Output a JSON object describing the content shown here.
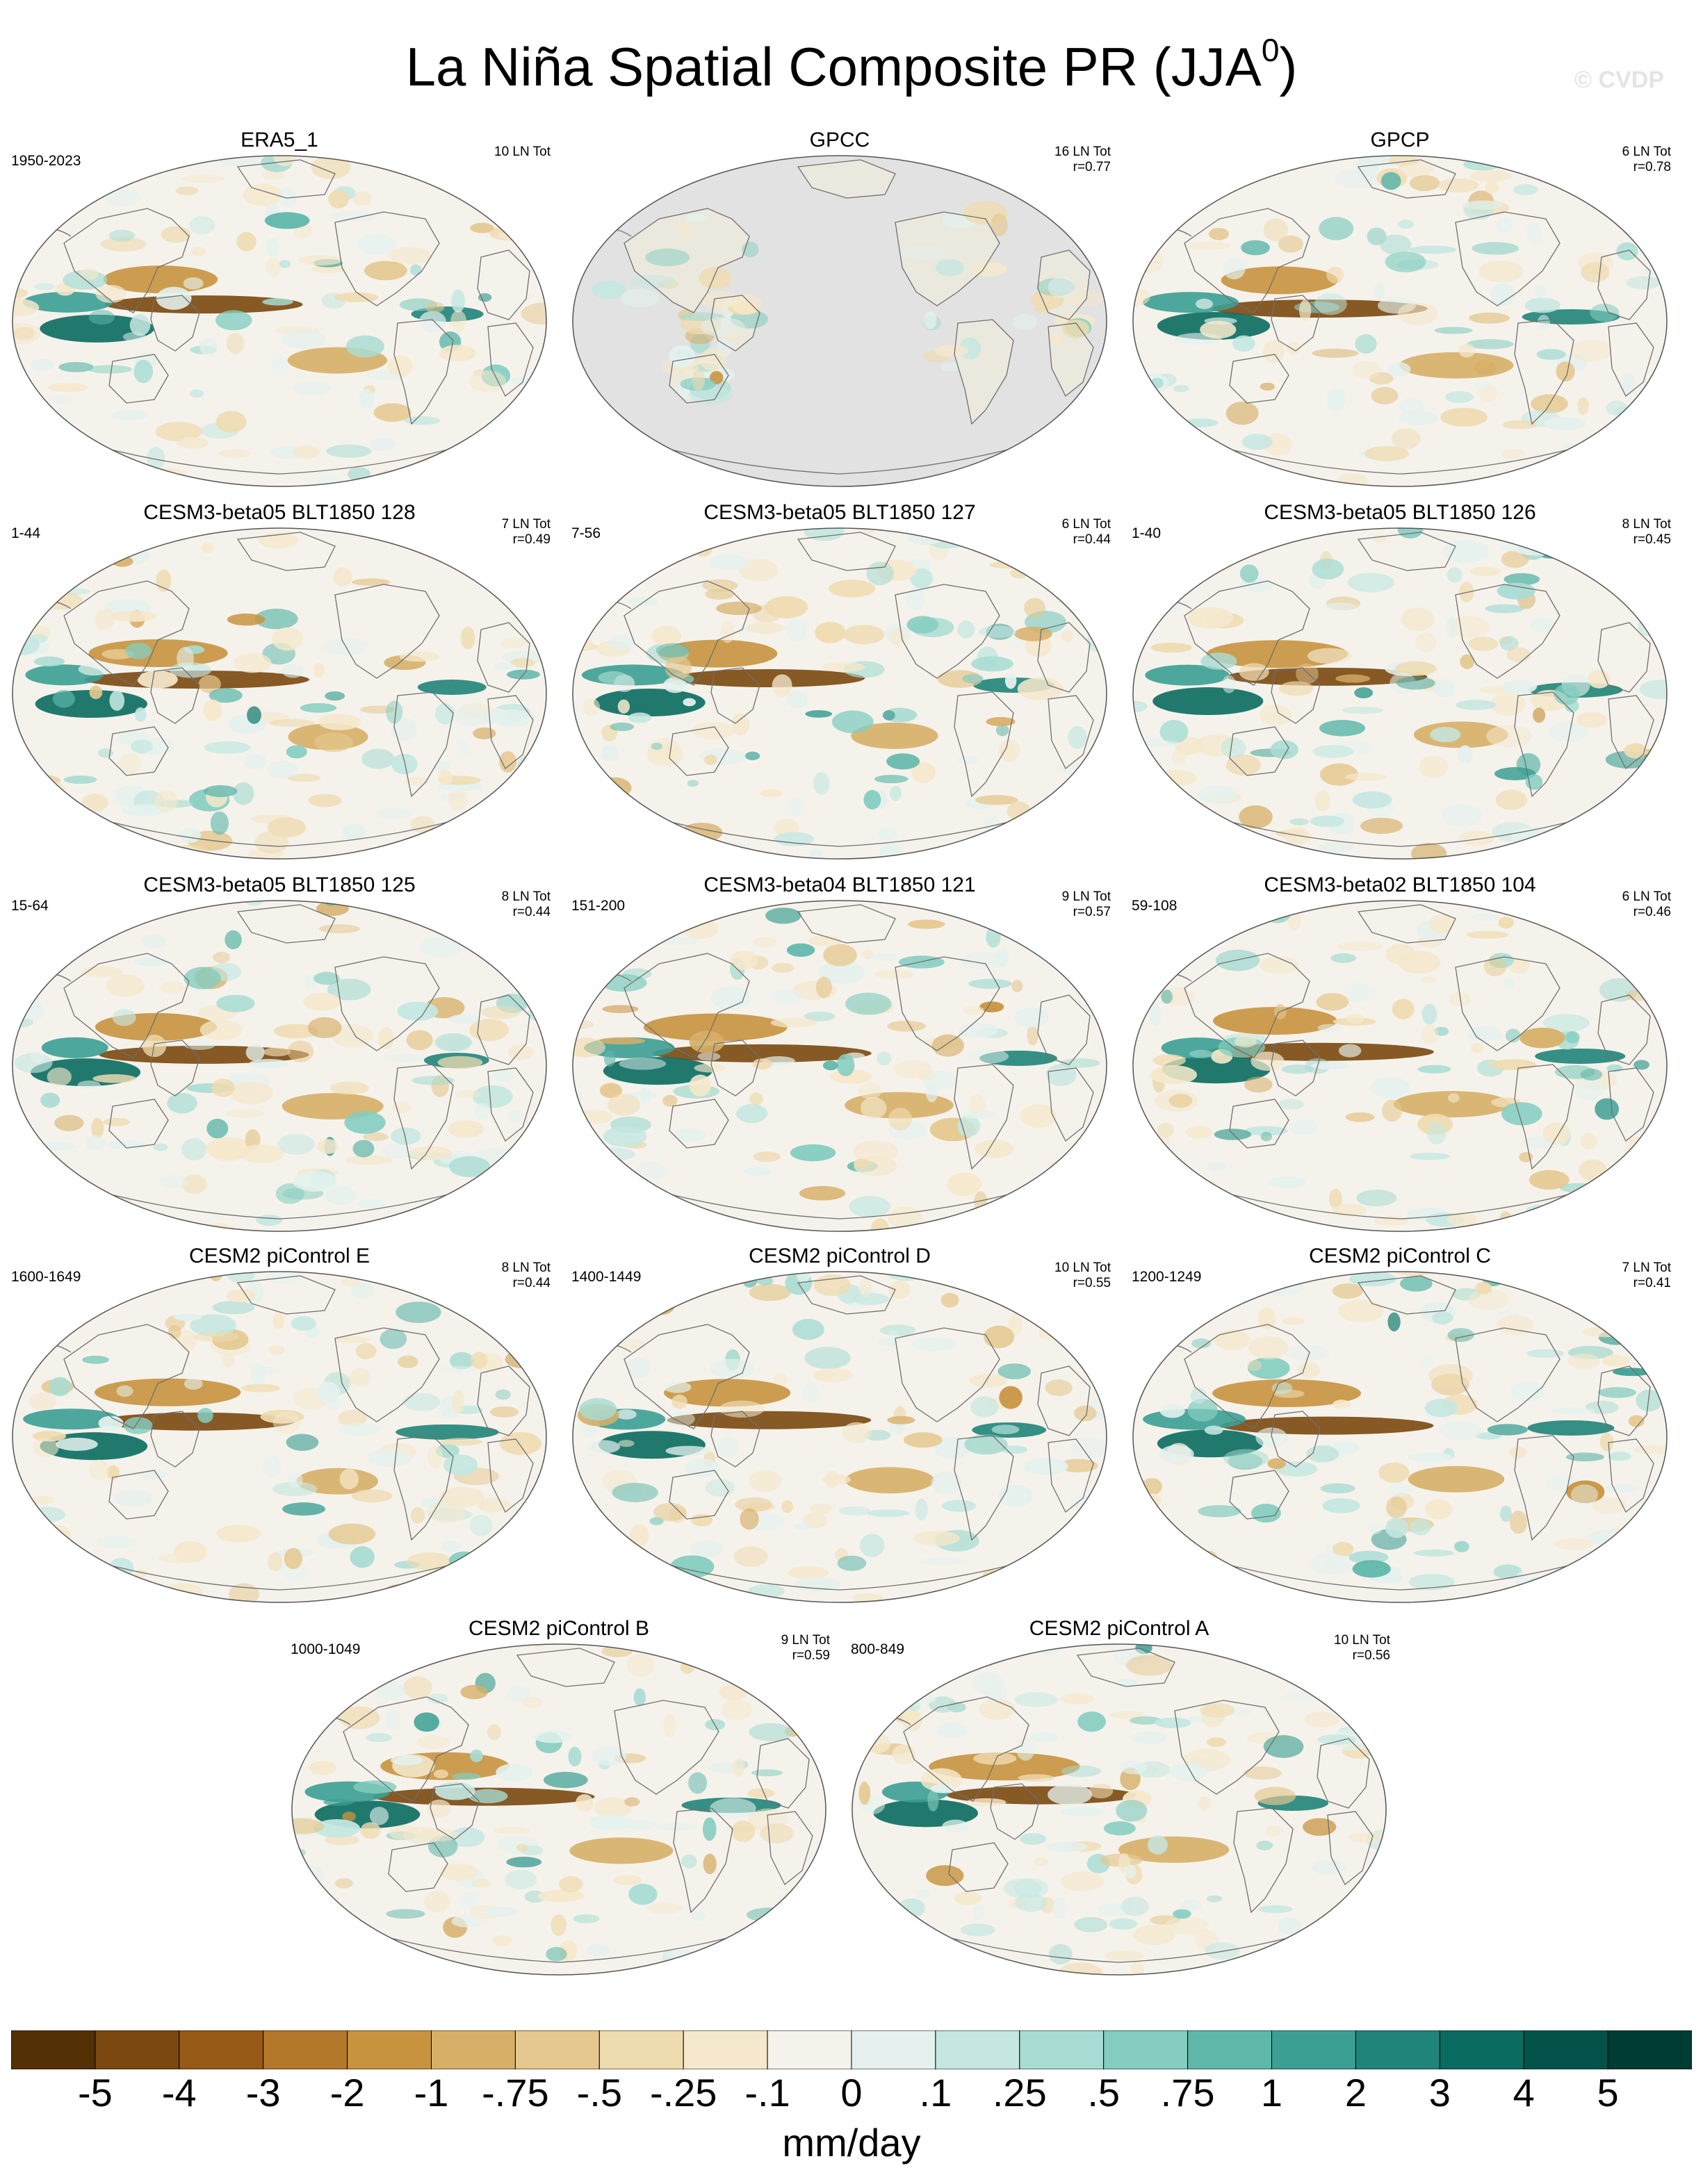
{
  "title": "La Niña Spatial Composite PR (JJA",
  "title_superscript": "0",
  "title_close": ")",
  "watermark": "© CVDP",
  "panels": [
    {
      "title": "ERA5_1",
      "years": "1950-2023",
      "stats": "10 LN Tot",
      "land_masked": false
    },
    {
      "title": "GPCC",
      "years": "",
      "stats": "16 LN Tot\nr=0.77",
      "land_masked": true
    },
    {
      "title": "GPCP",
      "years": "",
      "stats": "6 LN Tot\nr=0.78",
      "land_masked": false
    },
    {
      "title": "CESM3-beta05 BLT1850 128",
      "years": "1-44",
      "stats": "7 LN Tot\nr=0.49",
      "land_masked": false
    },
    {
      "title": "CESM3-beta05 BLT1850 127",
      "years": "7-56",
      "stats": "6 LN Tot\nr=0.44",
      "land_masked": false
    },
    {
      "title": "CESM3-beta05 BLT1850 126",
      "years": "1-40",
      "stats": "8 LN Tot\nr=0.45",
      "land_masked": false
    },
    {
      "title": "CESM3-beta05 BLT1850 125",
      "years": "15-64",
      "stats": "8 LN Tot\nr=0.44",
      "land_masked": false
    },
    {
      "title": "CESM3-beta04 BLT1850 121",
      "years": "151-200",
      "stats": "9 LN Tot\nr=0.57",
      "land_masked": false
    },
    {
      "title": "CESM3-beta02 BLT1850 104",
      "years": "59-108",
      "stats": "6 LN Tot\nr=0.46",
      "land_masked": false
    },
    {
      "title": "CESM2 piControl E",
      "years": "1600-1649",
      "stats": "8 LN Tot\nr=0.44",
      "land_masked": false
    },
    {
      "title": "CESM2 piControl D",
      "years": "1400-1449",
      "stats": "10 LN Tot\nr=0.55",
      "land_masked": false
    },
    {
      "title": "CESM2 piControl C",
      "years": "1200-1249",
      "stats": "7 LN Tot\nr=0.41",
      "land_masked": false
    },
    {
      "title": "CESM2 piControl B",
      "years": "1000-1049",
      "stats": "9 LN Tot\nr=0.59",
      "land_masked": false
    },
    {
      "title": "CESM2 piControl A",
      "years": "800-849",
      "stats": "10 LN Tot\nr=0.56",
      "land_masked": false
    }
  ],
  "colorbar": {
    "labels": [
      "-5",
      "-4",
      "-3",
      "-2",
      "-1",
      "-.75",
      "-.5",
      "-.25",
      "-.1",
      "0",
      ".1",
      ".25",
      ".5",
      ".75",
      "1",
      "2",
      "3",
      "4",
      "5"
    ],
    "colors": [
      "#543005",
      "#7a4810",
      "#975a16",
      "#b3782a",
      "#c8933f",
      "#d7af68",
      "#e5c88f",
      "#efdbb0",
      "#f5e8cc",
      "#f5f2ec",
      "#e4f1ee",
      "#c5e7e1",
      "#a8dcd3",
      "#84cdc0",
      "#5fb7aa",
      "#3c9f93",
      "#20847a",
      "#0a6b60",
      "#03534a",
      "#003c31"
    ],
    "units": "mm/day"
  }
}
